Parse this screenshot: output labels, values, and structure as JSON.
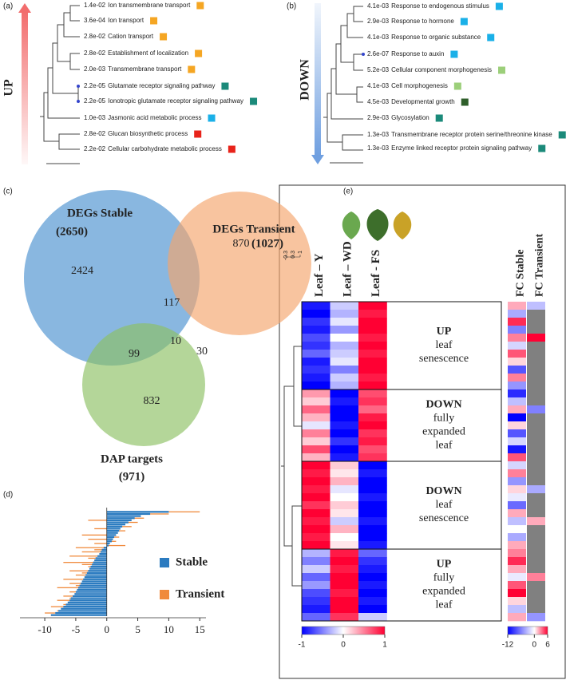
{
  "panels": {
    "a": {
      "label": "(a)",
      "direction": "UP",
      "arrow_color": "#f26d6d",
      "terms": [
        {
          "pvalue": "1.4e-02",
          "name": "Ion transmembrane transport",
          "color": "#f5a623"
        },
        {
          "pvalue": "3.6e-04",
          "name": "Ion transport",
          "color": "#f5a623"
        },
        {
          "pvalue": "2.8e-02",
          "name": "Cation transport",
          "color": "#f5a623"
        },
        {
          "pvalue": "2.8e-02",
          "name": "Establishment of localization",
          "color": "#f5a623"
        },
        {
          "pvalue": "2.0e-03",
          "name": "Transmembrane transport",
          "color": "#f5a623"
        },
        {
          "pvalue": "2.2e-05",
          "name": "Glutamate receptor signaling pathway",
          "color": "#1b8a7a"
        },
        {
          "pvalue": "2.2e-05",
          "name": "Ionotropic glutamate receptor signaling pathway",
          "color": "#1b8a7a"
        },
        {
          "pvalue": "1.0e-03",
          "name": "Jasmonic acid metabolic process",
          "color": "#1ab0e8"
        },
        {
          "pvalue": "2.8e-02",
          "name": "Glucan biosynthetic process",
          "color": "#e8231a"
        },
        {
          "pvalue": "2.2e-02",
          "name": "Cellular carbohydrate metabolic process",
          "color": "#e8231a"
        }
      ]
    },
    "b": {
      "label": "(b)",
      "direction": "DOWN",
      "arrow_color": "#6f9fe0",
      "terms": [
        {
          "pvalue": "4.1e-03",
          "name": "Response to endogenous stimulus",
          "color": "#1ab0e8"
        },
        {
          "pvalue": "2.9e-03",
          "name": "Response to hormone",
          "color": "#1ab0e8"
        },
        {
          "pvalue": "4.1e-03",
          "name": "Response to organic substance",
          "color": "#1ab0e8"
        },
        {
          "pvalue": "2.6e-07",
          "name": "Response to auxin",
          "color": "#1ab0e8"
        },
        {
          "pvalue": "5.2e-03",
          "name": "Cellular component morphogenesis",
          "color": "#9ccf7a"
        },
        {
          "pvalue": "4.1e-03",
          "name": "Cell morphogenesis",
          "color": "#9ccf7a"
        },
        {
          "pvalue": "4.5e-03",
          "name": "Developmental growth",
          "color": "#2e5e2a"
        },
        {
          "pvalue": "2.9e-03",
          "name": "Glycosylation",
          "color": "#1b8a7a"
        },
        {
          "pvalue": "1.3e-03",
          "name": "Transmembrane receptor protein serine/threonine kinase",
          "color": "#1b8a7a"
        },
        {
          "pvalue": "1.3e-03",
          "name": "Enzyme linked receptor protein signaling pathway",
          "color": "#1b8a7a"
        }
      ]
    },
    "c": {
      "label": "(c)",
      "sets": [
        {
          "name": "DEGs Stable",
          "total": "(2650)",
          "color": "#4a90d0"
        },
        {
          "name": "DEGs Transient",
          "total": "(1027)",
          "color": "#f4a46c"
        },
        {
          "name": "DAP targets",
          "total": "(971)",
          "color": "#8cc063"
        }
      ],
      "regions": {
        "stable_only": 2424,
        "stable_transient": 117,
        "transient_only": 870,
        "all": 10,
        "stable_dap": 99,
        "transient_dap": 30,
        "dap_only": 832
      }
    },
    "d": {
      "type": "bar",
      "label": "(d)",
      "xlim": [
        -14,
        16
      ],
      "xticks": [
        -10,
        -5,
        0,
        5,
        10,
        15
      ],
      "series": [
        {
          "name": "Stable",
          "color": "#2b7bc0",
          "values": [
            10,
            7,
            5.5,
            4.5,
            4,
            3.5,
            3,
            2.5,
            2.2,
            2,
            1.8,
            1.5,
            1.2,
            1,
            0.8,
            0.5,
            0.3,
            -0.5,
            -0.8,
            -1,
            -1.2,
            -1.5,
            -1.8,
            -2,
            -2.2,
            -2.4,
            -2.6,
            -2.8,
            -3,
            -3.2,
            -3.4,
            -3.6,
            -3.8,
            -4,
            -4.2,
            -4.4,
            -4.6,
            -4.8,
            -5,
            -5.2,
            -5.5,
            -5.8,
            -6,
            -6.3,
            -6.6,
            -7,
            -7.4,
            -7.8,
            -8.3,
            -9
          ]
        },
        {
          "name": "Transient",
          "color": "#f08a3c",
          "values": [
            15,
            10,
            3,
            6,
            -3,
            5,
            2,
            4,
            -2,
            3,
            1,
            -4,
            2,
            -3,
            1.5,
            -2,
            3,
            -5,
            -2,
            -4,
            -1,
            -6,
            -3,
            -2,
            -7,
            -4,
            -3,
            -1,
            -6,
            -4,
            -5,
            -2,
            -7,
            -3,
            -6,
            -5,
            -8,
            -4,
            -6,
            -3,
            -7,
            -6,
            -8,
            -5,
            -7,
            -9,
            -6,
            -8,
            -10,
            -9
          ]
        }
      ]
    },
    "e": {
      "type": "heatmap",
      "label": "(e)",
      "columns": [
        "Leaf – Y",
        "Leaf – WD",
        "Leaf - FS"
      ],
      "fc_columns": [
        "FC Stable",
        "FC Transient"
      ],
      "dendrogram_scale": [
        -0.3,
        0.3,
        1
      ],
      "low_color": "#0000ff",
      "high_color": "#ff0033",
      "missing_color": "#808080",
      "lim": [
        -1,
        1
      ],
      "ticks": [
        -1,
        0,
        1
      ],
      "fc_lim": [
        -12,
        6
      ],
      "fc_ticks": [
        -12,
        0,
        6
      ],
      "groups": [
        {
          "lines": [
            "UP",
            "leaf",
            "senescence"
          ],
          "rows": [
            [
              -0.9,
              -0.2,
              1
            ],
            [
              -1,
              -0.3,
              0.9
            ],
            [
              -0.8,
              -0.1,
              1
            ],
            [
              -0.9,
              -0.4,
              1
            ],
            [
              -0.7,
              0,
              0.9
            ],
            [
              -0.8,
              -0.3,
              1
            ],
            [
              -0.6,
              -0.2,
              0.9
            ],
            [
              -0.9,
              -0.1,
              1
            ],
            [
              -0.8,
              -0.5,
              1
            ],
            [
              -0.9,
              -0.2,
              0.9
            ],
            [
              -1,
              -0.3,
              1
            ]
          ],
          "fc_rows": [
            [
              2,
              -3
            ],
            [
              -4,
              null
            ],
            [
              5,
              null
            ],
            [
              -6,
              null
            ],
            [
              3,
              6
            ],
            [
              -2,
              null
            ],
            [
              4,
              null
            ],
            [
              1,
              null
            ],
            [
              -8,
              null
            ],
            [
              3,
              null
            ],
            [
              -5,
              null
            ]
          ]
        },
        {
          "lines": [
            "DOWN",
            "fully",
            "expanded",
            "leaf"
          ],
          "rows": [
            [
              0.4,
              -1,
              0.7
            ],
            [
              0.2,
              -0.9,
              0.8
            ],
            [
              0.6,
              -1,
              0.6
            ],
            [
              0.3,
              -1,
              0.9
            ],
            [
              -0.1,
              -0.9,
              1
            ],
            [
              0.5,
              -1,
              0.8
            ],
            [
              0.2,
              -0.8,
              0.9
            ],
            [
              0.7,
              -1,
              0.7
            ],
            [
              0.3,
              -0.9,
              0.8
            ]
          ],
          "fc_rows": [
            [
              -10,
              null
            ],
            [
              -3,
              null
            ],
            [
              2,
              -6
            ],
            [
              -12,
              null
            ],
            [
              1,
              null
            ],
            [
              -8,
              null
            ],
            [
              -2,
              null
            ],
            [
              -11,
              null
            ],
            [
              4,
              null
            ]
          ]
        },
        {
          "lines": [
            "DOWN",
            "leaf",
            "senescence"
          ],
          "rows": [
            [
              1,
              0.2,
              -1
            ],
            [
              0.9,
              0.1,
              -0.9
            ],
            [
              1,
              0.3,
              -1
            ],
            [
              0.9,
              -0.1,
              -1
            ],
            [
              1,
              0,
              -0.9
            ],
            [
              0.8,
              0.2,
              -1
            ],
            [
              1,
              0.1,
              -1
            ],
            [
              0.9,
              -0.2,
              -0.9
            ],
            [
              1,
              0.3,
              -1
            ],
            [
              0.9,
              0,
              -1
            ],
            [
              1,
              0.1,
              -0.9
            ]
          ],
          "fc_rows": [
            [
              -2,
              null
            ],
            [
              3,
              null
            ],
            [
              -5,
              null
            ],
            [
              1,
              -4
            ],
            [
              -1,
              null
            ],
            [
              -7,
              null
            ],
            [
              2,
              null
            ],
            [
              -3,
              2
            ],
            [
              0,
              null
            ],
            [
              -4,
              null
            ],
            [
              2,
              null
            ]
          ]
        },
        {
          "lines": [
            "UP",
            "fully",
            "expanded",
            "leaf"
          ],
          "rows": [
            [
              -0.3,
              0.9,
              -0.6
            ],
            [
              -0.5,
              1,
              -0.8
            ],
            [
              -0.2,
              0.9,
              -0.9
            ],
            [
              -0.6,
              1,
              -1
            ],
            [
              -0.4,
              1,
              -0.9
            ],
            [
              -0.7,
              0.9,
              -1
            ],
            [
              -0.8,
              1,
              -0.9
            ],
            [
              -0.9,
              1,
              -1
            ],
            [
              -0.6,
              0.8,
              -0.2
            ]
          ],
          "fc_rows": [
            [
              3,
              null
            ],
            [
              5,
              null
            ],
            [
              2,
              null
            ],
            [
              -1,
              3
            ],
            [
              4,
              null
            ],
            [
              6,
              null
            ],
            [
              1,
              null
            ],
            [
              -3,
              null
            ],
            [
              2,
              -5
            ]
          ]
        }
      ]
    }
  }
}
